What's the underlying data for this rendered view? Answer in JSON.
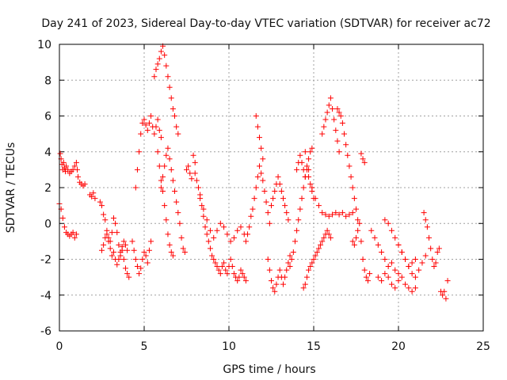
{
  "chart_data": {
    "type": "scatter",
    "title": "Day 241 of 2023, Sidereal Day-to-day VTEC variation (SDTVAR) for receiver ac72",
    "xlabel": "GPS time / hours",
    "ylabel": "SDTVAR / TECUs",
    "xlim": [
      0,
      25
    ],
    "ylim": [
      -6,
      10
    ],
    "xticks": [
      0,
      5,
      10,
      15,
      20,
      25
    ],
    "xtick_labels": [
      "0",
      "5",
      "10",
      "15",
      "20",
      "25"
    ],
    "yticks": [
      -6,
      -4,
      -2,
      0,
      2,
      4,
      6,
      8,
      10
    ],
    "ytick_labels": [
      "-6",
      "-4",
      "-2",
      "0",
      "2",
      "4",
      "6",
      "8",
      "10"
    ],
    "grid": true,
    "marker": "+",
    "colors": {
      "points": "#ff0000",
      "grid": "#a0a0a0",
      "axes": "#000000"
    },
    "series": [
      {
        "name": "SDTVAR",
        "x": [
          0.0,
          0.05,
          0.1,
          0.15,
          0.2,
          0.25,
          0.3,
          0.35,
          0.4,
          0.5,
          0.6,
          0.7,
          0.8,
          0.9,
          1.0,
          1.05,
          1.1,
          1.2,
          1.3,
          1.4,
          1.5,
          0.1,
          0.2,
          0.3,
          0.4,
          0.5,
          0.6,
          0.7,
          0.8,
          0.9,
          1.0,
          1.8,
          1.9,
          2.0,
          2.1,
          2.4,
          2.5,
          2.6,
          2.7,
          2.8,
          2.9,
          3.0,
          3.1,
          3.2,
          3.3,
          3.4,
          3.5,
          3.6,
          3.7,
          3.8,
          3.9,
          4.0,
          4.1,
          2.5,
          2.6,
          2.7,
          2.8,
          2.9,
          3.0,
          3.1,
          3.2,
          3.3,
          3.4,
          3.5,
          3.6,
          3.7,
          3.8,
          3.9,
          4.0,
          4.3,
          4.4,
          4.5,
          4.6,
          4.7,
          4.8,
          4.9,
          5.0,
          5.1,
          5.2,
          5.3,
          5.4,
          4.5,
          4.6,
          4.7,
          4.8,
          4.9,
          5.0,
          5.1,
          5.2,
          5.3,
          5.4,
          5.5,
          5.6,
          5.7,
          5.8,
          5.9,
          6.0,
          5.6,
          5.7,
          5.8,
          5.9,
          6.0,
          6.1,
          6.2,
          6.3,
          6.4,
          6.5,
          6.6,
          6.7,
          6.8,
          6.9,
          7.0,
          5.8,
          5.9,
          6.0,
          6.1,
          6.2,
          6.3,
          6.4,
          6.5,
          6.6,
          6.7,
          6.0,
          6.1,
          6.2,
          6.3,
          6.4,
          6.5,
          6.6,
          6.7,
          6.8,
          6.9,
          7.0,
          7.1,
          7.2,
          7.3,
          7.4,
          7.5,
          7.6,
          7.7,
          7.8,
          7.9,
          8.0,
          8.0,
          8.1,
          8.2,
          8.3,
          8.4,
          8.5,
          8.6,
          8.7,
          8.8,
          8.9,
          9.0,
          9.1,
          9.2,
          9.3,
          9.4,
          9.5,
          9.6,
          9.7,
          9.8,
          9.9,
          10.0,
          10.1,
          10.2,
          10.3,
          10.4,
          10.5,
          10.6,
          10.7,
          10.8,
          10.9,
          11.0,
          8.3,
          8.5,
          8.7,
          8.9,
          9.1,
          9.3,
          9.5,
          9.7,
          9.9,
          10.1,
          10.3,
          10.5,
          10.7,
          10.9,
          11.0,
          11.1,
          11.2,
          11.3,
          11.4,
          11.5,
          11.6,
          11.7,
          11.8,
          11.9,
          12.0,
          12.1,
          12.2,
          12.3,
          12.4,
          11.6,
          11.7,
          11.8,
          11.9,
          12.0,
          12.3,
          12.4,
          12.5,
          12.6,
          12.7,
          12.8,
          12.9,
          13.0,
          13.1,
          13.2,
          13.3,
          13.4,
          13.5,
          13.6,
          12.5,
          12.6,
          12.7,
          12.8,
          12.9,
          13.0,
          13.1,
          13.2,
          13.3,
          13.4,
          13.5,
          13.6,
          13.7,
          13.8,
          13.9,
          14.0,
          14.1,
          14.2,
          14.3,
          14.4,
          14.5,
          14.6,
          14.7,
          14.8,
          14.9,
          15.0,
          14.0,
          14.1,
          14.2,
          14.3,
          14.4,
          14.5,
          14.6,
          14.7,
          14.8,
          14.9,
          14.4,
          14.5,
          14.6,
          14.7,
          14.8,
          14.9,
          15.0,
          15.1,
          15.2,
          15.3,
          15.4,
          15.5,
          15.6,
          15.7,
          15.8,
          15.9,
          16.0,
          15.5,
          15.6,
          15.7,
          15.8,
          15.9,
          16.0,
          16.1,
          16.2,
          16.3,
          16.4,
          16.5,
          14.5,
          14.7,
          14.9,
          15.1,
          15.3,
          15.5,
          15.7,
          15.9,
          16.1,
          16.3,
          16.5,
          16.7,
          16.9,
          17.1,
          17.3,
          16.4,
          16.5,
          16.6,
          16.7,
          16.8,
          16.9,
          17.0,
          17.1,
          17.2,
          17.3,
          17.4,
          17.5,
          17.6,
          17.3,
          17.4,
          17.5,
          17.6,
          17.7,
          17.8,
          17.9,
          18.0,
          18.1,
          18.2,
          18.3,
          17.8,
          17.9,
          18.0,
          18.4,
          18.6,
          18.8,
          19.0,
          19.2,
          19.4,
          19.6,
          19.8,
          20.0,
          18.8,
          19.0,
          19.2,
          19.4,
          19.6,
          19.8,
          20.0,
          20.2,
          20.4,
          20.6,
          20.8,
          21.0,
          19.2,
          19.4,
          19.6,
          19.8,
          20.0,
          20.2,
          20.4,
          20.6,
          20.8,
          21.0,
          21.2,
          21.4,
          21.6,
          20.0,
          20.2,
          20.4,
          20.6,
          20.8,
          21.0,
          21.5,
          21.6,
          21.7,
          21.8,
          21.9,
          22.0,
          22.1,
          22.2,
          22.3,
          22.4,
          22.5,
          22.6,
          22.7,
          22.8,
          22.9
        ],
        "y": [
          1.1,
          3.9,
          3.6,
          3.3,
          3.0,
          3.4,
          3.1,
          2.9,
          3.2,
          3.0,
          2.8,
          2.9,
          3.0,
          3.2,
          3.4,
          3.0,
          2.6,
          2.3,
          2.2,
          2.1,
          2.2,
          0.8,
          0.3,
          -0.2,
          -0.5,
          -0.6,
          -0.7,
          -0.6,
          -0.5,
          -0.8,
          -0.6,
          1.6,
          1.5,
          1.7,
          1.4,
          1.2,
          1.0,
          0.5,
          0.2,
          -0.4,
          -0.8,
          -1.0,
          -0.5,
          0.3,
          0.0,
          -0.5,
          -1.2,
          -1.8,
          -1.5,
          -2.0,
          -2.5,
          -2.8,
          -3.0,
          -1.5,
          -1.2,
          -0.8,
          -0.6,
          -1.0,
          -1.4,
          -1.8,
          -1.6,
          -2.0,
          -2.3,
          -2.0,
          -1.6,
          -1.3,
          -1.0,
          -1.2,
          -1.5,
          -1.0,
          -1.5,
          -2.0,
          -2.4,
          -2.8,
          -2.5,
          -2.0,
          -1.6,
          -1.8,
          -2.2,
          -1.5,
          -1.0,
          2.0,
          3.0,
          4.0,
          5.0,
          5.6,
          5.8,
          5.5,
          5.2,
          5.6,
          6.0,
          5.4,
          5.0,
          5.4,
          5.8,
          5.2,
          4.8,
          8.2,
          8.6,
          8.9,
          9.2,
          9.6,
          9.9,
          9.4,
          8.8,
          8.2,
          7.6,
          7.0,
          6.4,
          6.0,
          5.4,
          5.0,
          4.0,
          3.2,
          2.4,
          1.8,
          1.0,
          0.2,
          -0.6,
          -1.2,
          -1.6,
          -1.8,
          2.0,
          2.6,
          3.2,
          3.8,
          4.2,
          3.6,
          3.0,
          2.4,
          1.8,
          1.2,
          0.6,
          0.0,
          -0.8,
          -1.4,
          -1.6,
          3.0,
          3.2,
          2.8,
          2.5,
          3.8,
          3.4,
          2.8,
          2.4,
          2.0,
          1.6,
          1.0,
          0.4,
          -0.2,
          -0.6,
          -1.0,
          -1.4,
          -1.8,
          -2.0,
          -2.2,
          -2.4,
          -2.6,
          -2.8,
          -2.4,
          -2.2,
          -2.6,
          -2.8,
          -2.4,
          -2.0,
          -2.4,
          -2.8,
          -3.0,
          -3.2,
          -3.0,
          -2.6,
          -2.8,
          -3.0,
          -3.2,
          1.4,
          0.8,
          0.2,
          -0.4,
          -0.8,
          -0.4,
          0.0,
          -0.2,
          -0.6,
          -1.0,
          -0.8,
          -0.4,
          -0.2,
          -0.6,
          -1.0,
          -0.6,
          -0.2,
          0.4,
          0.8,
          1.4,
          2.0,
          2.6,
          3.2,
          2.8,
          2.4,
          1.8,
          1.2,
          0.6,
          0.0,
          6.0,
          5.4,
          4.8,
          4.2,
          3.6,
          -2.0,
          -2.6,
          -3.2,
          -3.6,
          -3.8,
          -3.4,
          -3.0,
          -2.6,
          -3.0,
          -3.4,
          -3.0,
          -2.6,
          -2.2,
          -1.8,
          1.0,
          1.4,
          1.8,
          2.2,
          2.6,
          2.2,
          1.8,
          1.4,
          1.0,
          0.6,
          0.2,
          -2.4,
          -2.0,
          -1.6,
          -1.0,
          -0.4,
          0.2,
          0.8,
          1.4,
          2.0,
          2.6,
          3.0,
          2.6,
          2.2,
          1.8,
          1.4,
          3.0,
          3.4,
          3.8,
          3.4,
          3.0,
          2.6,
          3.2,
          3.6,
          4.0,
          4.2,
          -3.6,
          -3.4,
          -3.0,
          -2.6,
          -2.4,
          -2.2,
          -2.0,
          -1.8,
          -1.6,
          -1.4,
          -1.2,
          -1.0,
          -0.8,
          -0.6,
          -0.4,
          -0.6,
          -0.8,
          5.0,
          5.4,
          5.8,
          6.2,
          6.6,
          7.0,
          6.4,
          5.8,
          5.2,
          4.6,
          4.0,
          4.0,
          3.0,
          2.0,
          1.4,
          1.0,
          0.6,
          0.5,
          0.4,
          0.5,
          0.6,
          0.5,
          0.6,
          0.4,
          0.5,
          0.6,
          6.4,
          6.2,
          6.0,
          5.6,
          5.0,
          4.4,
          3.8,
          3.2,
          2.6,
          2.0,
          1.4,
          0.8,
          0.2,
          -1.0,
          -1.2,
          -0.8,
          -0.4,
          0.0,
          -1.0,
          -2.0,
          -2.6,
          -3.0,
          -3.2,
          -2.8,
          3.9,
          3.6,
          3.4,
          -0.4,
          -0.8,
          -1.2,
          -1.6,
          -2.0,
          -2.4,
          -2.2,
          -2.6,
          -2.8,
          -3.0,
          -3.2,
          -2.8,
          -3.0,
          -3.4,
          -3.6,
          -3.2,
          -3.0,
          -3.4,
          -3.6,
          -3.8,
          -3.6,
          0.2,
          0.0,
          -0.4,
          -0.8,
          -1.2,
          -1.6,
          -2.0,
          -2.4,
          -2.8,
          -3.0,
          -2.6,
          -2.2,
          -1.8,
          -1.2,
          -1.6,
          -2.0,
          -2.4,
          -2.2,
          -2.0,
          0.6,
          0.2,
          -0.2,
          -0.8,
          -1.4,
          -2.0,
          -2.4,
          -2.2,
          -1.6,
          -1.4,
          -3.8,
          -4.0,
          -3.8,
          -4.2,
          -3.2
        ]
      }
    ]
  }
}
